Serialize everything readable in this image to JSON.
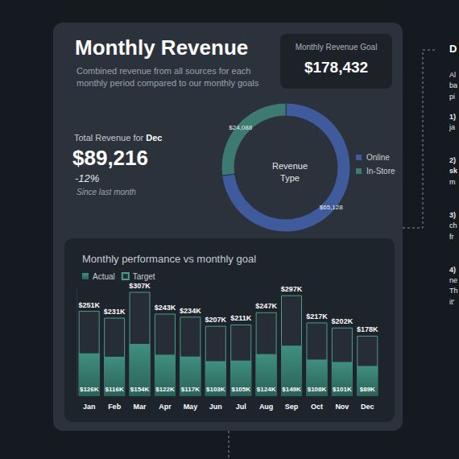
{
  "header": {
    "title": "Monthly Revenue",
    "subtitle_lines": [
      "Combined revenue from all sources for each",
      "monthly period compared to our monthly goals"
    ],
    "goal_label": "Monthly Revenue Goal",
    "goal_value": "$178,432",
    "total_label": "Total Revenue for",
    "total_month": "Dec",
    "total_value": "$89,216",
    "change": "-12%",
    "change_note": "Since last month"
  },
  "side_panel": {
    "heading": "D",
    "lines": [
      {
        "text": "Al",
        "bold": false
      },
      {
        "text": "ba",
        "bold": false
      },
      {
        "text": "pi",
        "bold": false
      },
      {
        "text": "1)",
        "bold": true
      },
      {
        "text": "ja",
        "bold": false
      },
      {
        "text": "2)",
        "bold": true
      },
      {
        "text": "sk",
        "bold": true
      },
      {
        "text": "m",
        "bold": false
      },
      {
        "text": "3)",
        "bold": true
      },
      {
        "text": "ch",
        "bold": false
      },
      {
        "text": "fr",
        "bold": false
      },
      {
        "text": "4)",
        "bold": true
      },
      {
        "text": "ne",
        "bold": false
      },
      {
        "text": "Th",
        "bold": false
      },
      {
        "text": "it'",
        "bold": false
      }
    ]
  },
  "chart_data": [
    {
      "type": "pie",
      "title": "Revenue Type",
      "categories": [
        "Online",
        "In-Store"
      ],
      "values": [
        65128,
        24088
      ],
      "value_labels": [
        "$65,128",
        "$24,088"
      ],
      "colors": [
        "#3f5b9c",
        "#3d7a72"
      ],
      "data_labels": true,
      "legend": "right"
    },
    {
      "type": "bar",
      "title": "Monthly performance vs monthly goal",
      "categories": [
        "Jan",
        "Feb",
        "Mar",
        "Apr",
        "May",
        "Jun",
        "Jul",
        "Aug",
        "Sep",
        "Oct",
        "Nov",
        "Dec"
      ],
      "series": [
        {
          "name": "Actual",
          "color": "#3f8f7f",
          "values": [
            126,
            116,
            154,
            122,
            117,
            103,
            105,
            124,
            149,
            108,
            101,
            89
          ],
          "value_labels": [
            "$126K",
            "$116K",
            "$154K",
            "$122K",
            "$117K",
            "$103K",
            "$105K",
            "$124K",
            "$149K",
            "$108K",
            "$101K",
            "$89K"
          ]
        },
        {
          "name": "Target",
          "color": "#4f9b8c",
          "values": [
            251,
            231,
            307,
            243,
            234,
            207,
            211,
            247,
            297,
            217,
            202,
            178
          ],
          "value_labels": [
            "$251K",
            "$231K",
            "$307K",
            "$243K",
            "$234K",
            "$207K",
            "$211K",
            "$247K",
            "$297K",
            "$217K",
            "$202K",
            "$178K"
          ]
        }
      ],
      "ylim": [
        0,
        320
      ],
      "grid": false,
      "tick_labels": "x",
      "data_labels": true,
      "legend": "top-left"
    }
  ]
}
